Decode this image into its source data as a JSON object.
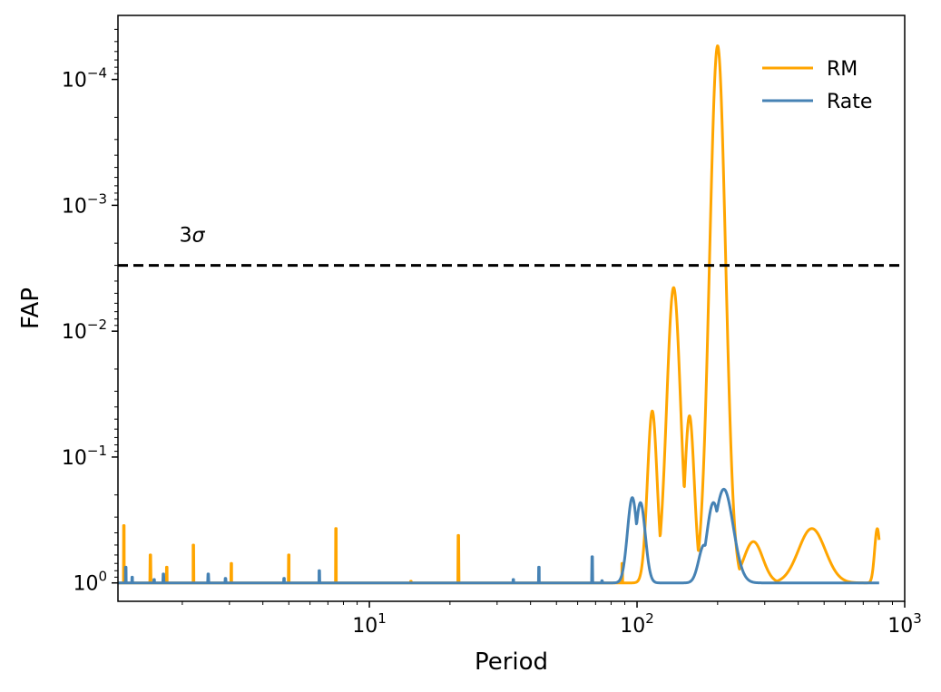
{
  "chart_data": {
    "type": "line",
    "xlabel": "Period",
    "ylabel": "FAP",
    "x_scale": "log",
    "y_scale": "log",
    "y_inverted": true,
    "xlim": [
      1.15,
      1000
    ],
    "ylim": [
      1.4,
      3.1e-05
    ],
    "grid": false,
    "legend_position": "top-right",
    "x_ticks": [
      {
        "value": 10,
        "base": "10",
        "exp": "1"
      },
      {
        "value": 100,
        "base": "10",
        "exp": "2"
      },
      {
        "value": 1000,
        "base": "10",
        "exp": "3"
      }
    ],
    "y_ticks": [
      {
        "value": 1,
        "base": "10",
        "exp": "0"
      },
      {
        "value": 0.1,
        "base": "10",
        "exp": "−1"
      },
      {
        "value": 0.01,
        "base": "10",
        "exp": "−2"
      },
      {
        "value": 0.001,
        "base": "10",
        "exp": "−3"
      },
      {
        "value": 0.0001,
        "base": "10",
        "exp": "−4"
      }
    ],
    "threshold": {
      "value": 0.003,
      "label_base": "3",
      "label_sym": "σ"
    },
    "series": [
      {
        "name": "RM",
        "color": "#FFA500",
        "baseline": 1.0,
        "narrow_peaks": [
          [
            1.21,
            0.35
          ],
          [
            1.52,
            0.6
          ],
          [
            1.75,
            0.75
          ],
          [
            2.2,
            0.5
          ],
          [
            3.05,
            0.7
          ],
          [
            5.0,
            0.6
          ],
          [
            7.5,
            0.37
          ],
          [
            21.5,
            0.42
          ],
          [
            14.3,
            0.97
          ],
          [
            88,
            0.7
          ]
        ],
        "broad_peaks": [
          [
            114,
            0.043,
            0.018
          ],
          [
            137,
            0.0045,
            0.026
          ],
          [
            157,
            0.047,
            0.018
          ],
          [
            200,
            5.4e-05,
            0.03
          ],
          [
            272,
            0.47,
            0.035
          ],
          [
            450,
            0.37,
            0.05
          ],
          [
            790,
            0.37,
            0.01
          ]
        ]
      },
      {
        "name": "Rate",
        "color": "#4682B4",
        "baseline": 1.0,
        "narrow_peaks": [
          [
            1.23,
            0.75
          ],
          [
            1.3,
            0.9
          ],
          [
            1.57,
            0.94
          ],
          [
            1.7,
            0.85
          ],
          [
            2.5,
            0.85
          ],
          [
            2.9,
            0.92
          ],
          [
            4.8,
            0.92
          ],
          [
            6.5,
            0.8
          ],
          [
            34.5,
            0.94
          ],
          [
            43,
            0.75
          ],
          [
            68,
            0.62
          ],
          [
            74,
            0.96
          ]
        ],
        "broad_peaks": [
          [
            96,
            0.21,
            0.018
          ],
          [
            103,
            0.23,
            0.018
          ],
          [
            178,
            0.5,
            0.02
          ],
          [
            193,
            0.23,
            0.025
          ],
          [
            211,
            0.18,
            0.035
          ]
        ]
      }
    ]
  }
}
